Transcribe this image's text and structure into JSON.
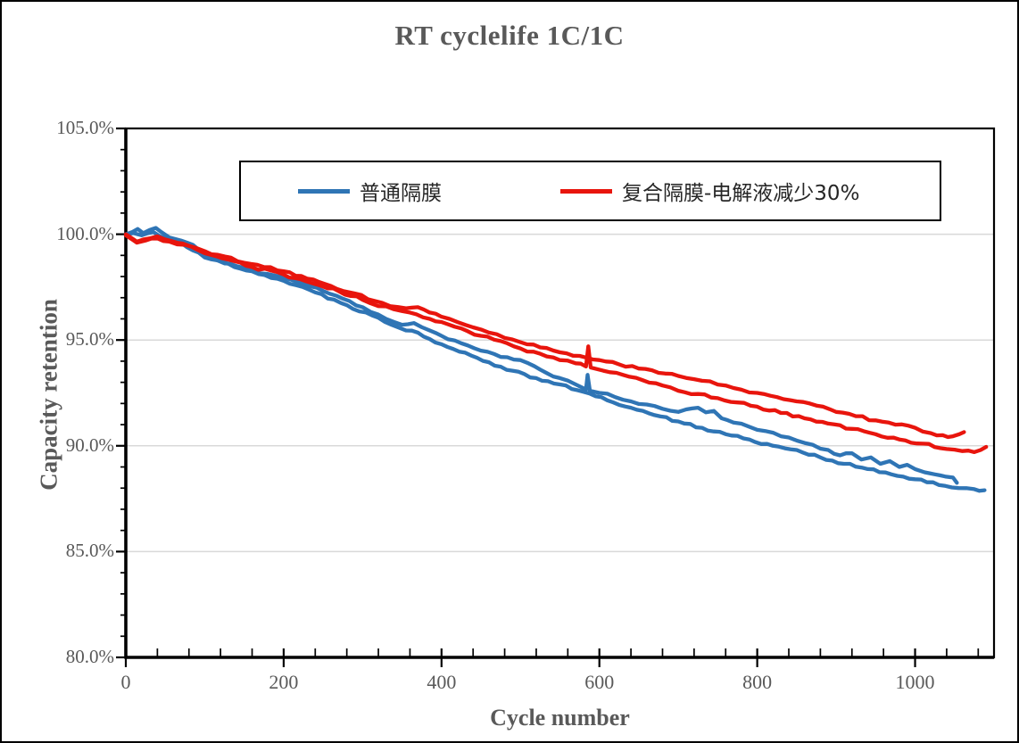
{
  "window": {
    "background": "#ffffff",
    "border_color": "#000000"
  },
  "colors": {
    "title_text": "#595959",
    "tick_text": "#595959",
    "axis_line": "#000000",
    "gridline": "#d9d9d9",
    "series_blue": "#2f75b5",
    "series_red": "#e8150d",
    "legend_text": "#262626"
  },
  "chart_data": {
    "type": "line",
    "title": "RT cyclelife 1C/1C",
    "xlabel": "Cycle number",
    "ylabel": "Capacity retention",
    "xlim": [
      0,
      1100
    ],
    "ylim": [
      80,
      105
    ],
    "grid": "horizontal-major-only",
    "legend_position": "top-inside-box",
    "x_ticks": [
      {
        "value": 0,
        "label": "0"
      },
      {
        "value": 200,
        "label": "200"
      },
      {
        "value": 400,
        "label": "400"
      },
      {
        "value": 600,
        "label": "600"
      },
      {
        "value": 800,
        "label": "800"
      },
      {
        "value": 1000,
        "label": "1000"
      }
    ],
    "x_minor_step": 40,
    "y_ticks": [
      {
        "value": 80,
        "label": "80.0%"
      },
      {
        "value": 85,
        "label": "85.0%"
      },
      {
        "value": 90,
        "label": "90.0%"
      },
      {
        "value": 95,
        "label": "95.0%"
      },
      {
        "value": 100,
        "label": "100.0%"
      },
      {
        "value": 105,
        "label": "105.0%"
      }
    ],
    "y_minor_step": 1,
    "legend": [
      {
        "label": "普通隔膜",
        "color": "#2f75b5"
      },
      {
        "label": "复合隔膜-电解液减少30%",
        "color": "#e8150d"
      }
    ],
    "series": [
      {
        "id": "blue-a",
        "legend_label": "普通隔膜",
        "color": "#2f75b5",
        "points": [
          [
            0,
            100.0
          ],
          [
            8,
            100.1
          ],
          [
            15,
            100.25
          ],
          [
            22,
            100.05
          ],
          [
            30,
            100.2
          ],
          [
            38,
            100.3
          ],
          [
            45,
            100.1
          ],
          [
            55,
            99.85
          ],
          [
            70,
            99.7
          ],
          [
            85,
            99.5
          ],
          [
            100,
            99.0
          ],
          [
            115,
            98.78
          ],
          [
            125,
            98.62
          ],
          [
            140,
            98.5
          ],
          [
            160,
            98.3
          ],
          [
            180,
            98.12
          ],
          [
            200,
            97.95
          ],
          [
            225,
            97.65
          ],
          [
            250,
            97.32
          ],
          [
            275,
            96.95
          ],
          [
            300,
            96.55
          ],
          [
            320,
            96.2
          ],
          [
            340,
            95.85
          ],
          [
            350,
            95.72
          ],
          [
            365,
            95.8
          ],
          [
            385,
            95.45
          ],
          [
            400,
            95.2
          ],
          [
            425,
            94.85
          ],
          [
            450,
            94.5
          ],
          [
            475,
            94.2
          ],
          [
            500,
            94.05
          ],
          [
            510,
            93.9
          ],
          [
            525,
            93.6
          ],
          [
            550,
            93.2
          ],
          [
            570,
            92.9
          ],
          [
            580,
            92.72
          ],
          [
            583,
            92.65
          ],
          [
            585,
            93.35
          ],
          [
            588,
            92.6
          ],
          [
            600,
            92.5
          ],
          [
            620,
            92.3
          ],
          [
            640,
            92.1
          ],
          [
            660,
            91.95
          ],
          [
            680,
            91.75
          ],
          [
            700,
            91.6
          ],
          [
            710,
            91.72
          ],
          [
            725,
            91.8
          ],
          [
            735,
            91.58
          ],
          [
            745,
            91.65
          ],
          [
            755,
            91.3
          ],
          [
            770,
            91.1
          ],
          [
            790,
            90.9
          ],
          [
            810,
            90.7
          ],
          [
            830,
            90.45
          ],
          [
            850,
            90.25
          ],
          [
            870,
            90.05
          ],
          [
            890,
            89.8
          ],
          [
            905,
            89.55
          ],
          [
            920,
            89.65
          ],
          [
            932,
            89.35
          ],
          [
            944,
            89.45
          ],
          [
            956,
            89.15
          ],
          [
            968,
            89.28
          ],
          [
            980,
            89.0
          ],
          [
            990,
            89.1
          ],
          [
            1000,
            88.9
          ],
          [
            1012,
            88.75
          ],
          [
            1025,
            88.65
          ],
          [
            1038,
            88.55
          ],
          [
            1048,
            88.5
          ],
          [
            1053,
            88.25
          ]
        ]
      },
      {
        "id": "blue-b",
        "legend_label": "普通隔膜",
        "color": "#2f75b5",
        "points": [
          [
            0,
            100.0
          ],
          [
            10,
            100.05
          ],
          [
            20,
            99.95
          ],
          [
            35,
            100.1
          ],
          [
            50,
            99.8
          ],
          [
            70,
            99.6
          ],
          [
            100,
            98.9
          ],
          [
            130,
            98.6
          ],
          [
            160,
            98.25
          ],
          [
            200,
            97.8
          ],
          [
            240,
            97.25
          ],
          [
            280,
            96.65
          ],
          [
            320,
            96.05
          ],
          [
            345,
            95.6
          ],
          [
            355,
            95.45
          ],
          [
            370,
            95.35
          ],
          [
            400,
            94.8
          ],
          [
            430,
            94.4
          ],
          [
            460,
            93.95
          ],
          [
            490,
            93.55
          ],
          [
            520,
            93.2
          ],
          [
            550,
            92.9
          ],
          [
            580,
            92.55
          ],
          [
            610,
            92.15
          ],
          [
            640,
            91.8
          ],
          [
            670,
            91.45
          ],
          [
            700,
            91.15
          ],
          [
            730,
            90.85
          ],
          [
            760,
            90.55
          ],
          [
            790,
            90.3
          ],
          [
            820,
            90.0
          ],
          [
            850,
            89.8
          ],
          [
            880,
            89.45
          ],
          [
            910,
            89.15
          ],
          [
            940,
            88.9
          ],
          [
            970,
            88.65
          ],
          [
            1000,
            88.42
          ],
          [
            1030,
            88.15
          ],
          [
            1055,
            88.0
          ],
          [
            1075,
            87.95
          ],
          [
            1088,
            87.9
          ]
        ]
      },
      {
        "id": "red-a",
        "legend_label": "复合隔膜-电解液减少30%",
        "color": "#e8150d",
        "points": [
          [
            0,
            100.0
          ],
          [
            8,
            99.8
          ],
          [
            14,
            99.65
          ],
          [
            22,
            99.75
          ],
          [
            30,
            99.8
          ],
          [
            40,
            99.9
          ],
          [
            50,
            99.75
          ],
          [
            65,
            99.6
          ],
          [
            80,
            99.45
          ],
          [
            100,
            99.2
          ],
          [
            125,
            98.95
          ],
          [
            150,
            98.65
          ],
          [
            175,
            98.45
          ],
          [
            200,
            98.25
          ],
          [
            230,
            97.9
          ],
          [
            260,
            97.55
          ],
          [
            290,
            97.2
          ],
          [
            315,
            96.85
          ],
          [
            335,
            96.6
          ],
          [
            355,
            96.5
          ],
          [
            370,
            96.55
          ],
          [
            385,
            96.3
          ],
          [
            400,
            96.1
          ],
          [
            420,
            95.85
          ],
          [
            440,
            95.6
          ],
          [
            460,
            95.35
          ],
          [
            480,
            95.1
          ],
          [
            500,
            94.9
          ],
          [
            525,
            94.65
          ],
          [
            550,
            94.42
          ],
          [
            575,
            94.25
          ],
          [
            600,
            94.05
          ],
          [
            625,
            93.85
          ],
          [
            650,
            93.65
          ],
          [
            675,
            93.45
          ],
          [
            700,
            93.3
          ],
          [
            720,
            93.15
          ],
          [
            740,
            93.05
          ],
          [
            760,
            92.85
          ],
          [
            780,
            92.65
          ],
          [
            800,
            92.5
          ],
          [
            825,
            92.3
          ],
          [
            850,
            92.1
          ],
          [
            875,
            91.9
          ],
          [
            900,
            91.6
          ],
          [
            925,
            91.4
          ],
          [
            950,
            91.2
          ],
          [
            975,
            91.0
          ],
          [
            1000,
            90.85
          ],
          [
            1020,
            90.6
          ],
          [
            1035,
            90.5
          ],
          [
            1048,
            90.45
          ],
          [
            1056,
            90.55
          ],
          [
            1062,
            90.65
          ]
        ]
      },
      {
        "id": "red-b",
        "legend_label": "复合隔膜-电解液减少30%",
        "color": "#e8150d",
        "points": [
          [
            0,
            99.95
          ],
          [
            8,
            99.75
          ],
          [
            14,
            99.6
          ],
          [
            25,
            99.7
          ],
          [
            40,
            99.8
          ],
          [
            55,
            99.65
          ],
          [
            75,
            99.5
          ],
          [
            100,
            99.1
          ],
          [
            130,
            98.8
          ],
          [
            160,
            98.45
          ],
          [
            200,
            98.1
          ],
          [
            235,
            97.7
          ],
          [
            270,
            97.3
          ],
          [
            300,
            96.9
          ],
          [
            320,
            96.6
          ],
          [
            340,
            96.45
          ],
          [
            360,
            96.3
          ],
          [
            385,
            96.0
          ],
          [
            400,
            95.85
          ],
          [
            425,
            95.55
          ],
          [
            450,
            95.2
          ],
          [
            475,
            94.95
          ],
          [
            500,
            94.6
          ],
          [
            525,
            94.35
          ],
          [
            550,
            94.05
          ],
          [
            570,
            93.9
          ],
          [
            583,
            93.75
          ],
          [
            586,
            94.7
          ],
          [
            589,
            93.7
          ],
          [
            605,
            93.55
          ],
          [
            630,
            93.35
          ],
          [
            655,
            93.1
          ],
          [
            680,
            92.85
          ],
          [
            700,
            92.6
          ],
          [
            725,
            92.45
          ],
          [
            750,
            92.25
          ],
          [
            775,
            92.05
          ],
          [
            800,
            91.85
          ],
          [
            830,
            91.55
          ],
          [
            860,
            91.3
          ],
          [
            890,
            91.05
          ],
          [
            920,
            90.8
          ],
          [
            950,
            90.55
          ],
          [
            980,
            90.3
          ],
          [
            1010,
            90.1
          ],
          [
            1040,
            89.85
          ],
          [
            1060,
            89.75
          ],
          [
            1075,
            89.7
          ],
          [
            1083,
            89.8
          ],
          [
            1090,
            89.95
          ]
        ]
      }
    ]
  }
}
